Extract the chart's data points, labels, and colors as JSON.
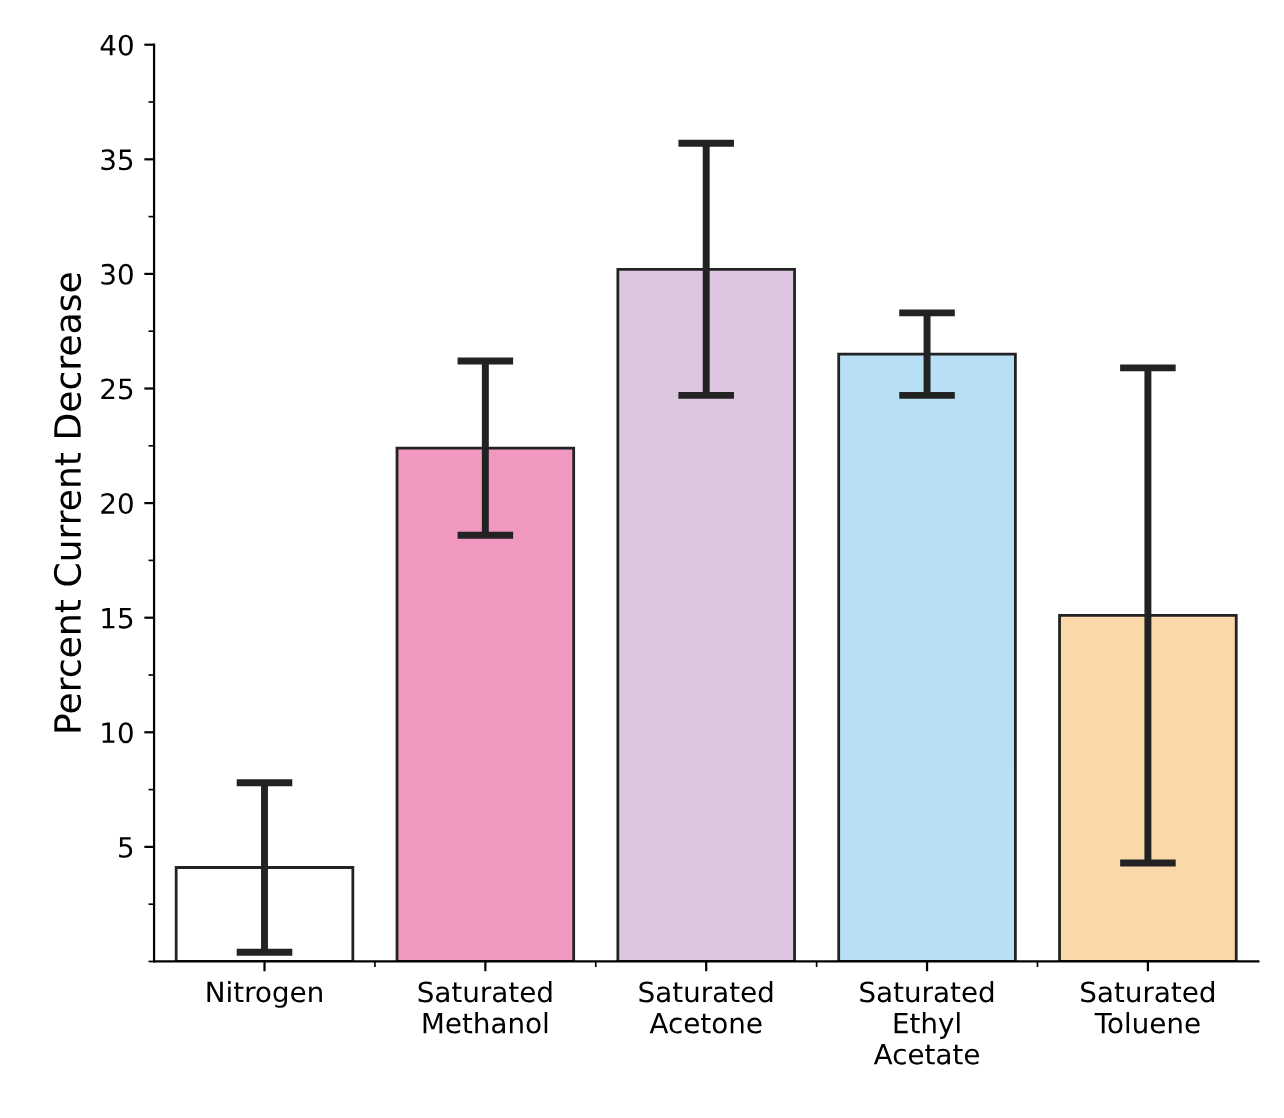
{
  "chart_data": {
    "type": "bar",
    "ylabel": "Percent Current Decrease",
    "categories": [
      "Nitrogen",
      "Saturated\nMethanol",
      "Saturated\nAcetone",
      "Saturated\nEthyl\nAcetate",
      "Saturated\nToluene"
    ],
    "values": [
      4.1,
      22.4,
      30.2,
      26.5,
      15.1
    ],
    "errors": [
      3.7,
      3.8,
      5.5,
      1.8,
      10.8
    ],
    "colors": [
      "#ffffff",
      "#f198c0",
      "#dcc6e0",
      "#b7e0f6",
      "#fbd8aa"
    ],
    "ylim": [
      0,
      40
    ],
    "yticks": [
      5,
      10,
      15,
      20,
      25,
      30,
      35,
      40
    ],
    "grid": false
  }
}
